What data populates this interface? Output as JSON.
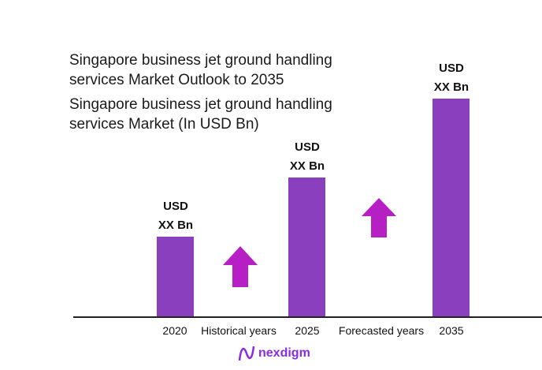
{
  "chart_data": {
    "type": "bar",
    "title": "Singapore business jet ground handling services Market Outlook to 2035",
    "subtitle": "Singapore business jet ground handling services Market (In USD Bn)",
    "categories": [
      "2020",
      "2025",
      "2035"
    ],
    "values": [
      null,
      null,
      null
    ],
    "data_labels": [
      [
        "USD",
        "XX Bn"
      ],
      [
        "USD",
        "XX Bn"
      ],
      [
        "USD",
        "XX Bn"
      ]
    ],
    "annotations": [
      "Historical years",
      "Forecasted years"
    ],
    "grid": false,
    "bar_color": "#8a3fbf",
    "arrow_color": "#b51fc4"
  },
  "logo": {
    "text": "nexdigm"
  }
}
